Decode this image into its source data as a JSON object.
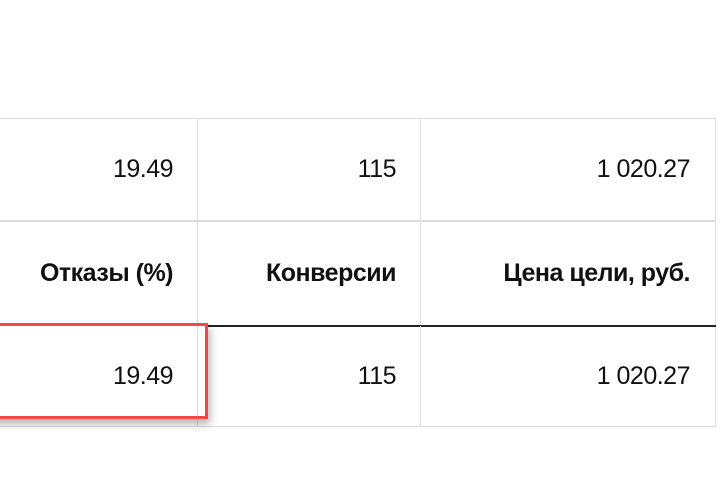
{
  "table": {
    "rows": [
      [
        "19.49",
        "115",
        "1 020.27"
      ],
      [
        "Отказы (%)",
        "Конверсии",
        "Цена цели, руб."
      ],
      [
        "19.49",
        "115",
        "1 020.27"
      ]
    ]
  },
  "highlight_color": "#f04848"
}
